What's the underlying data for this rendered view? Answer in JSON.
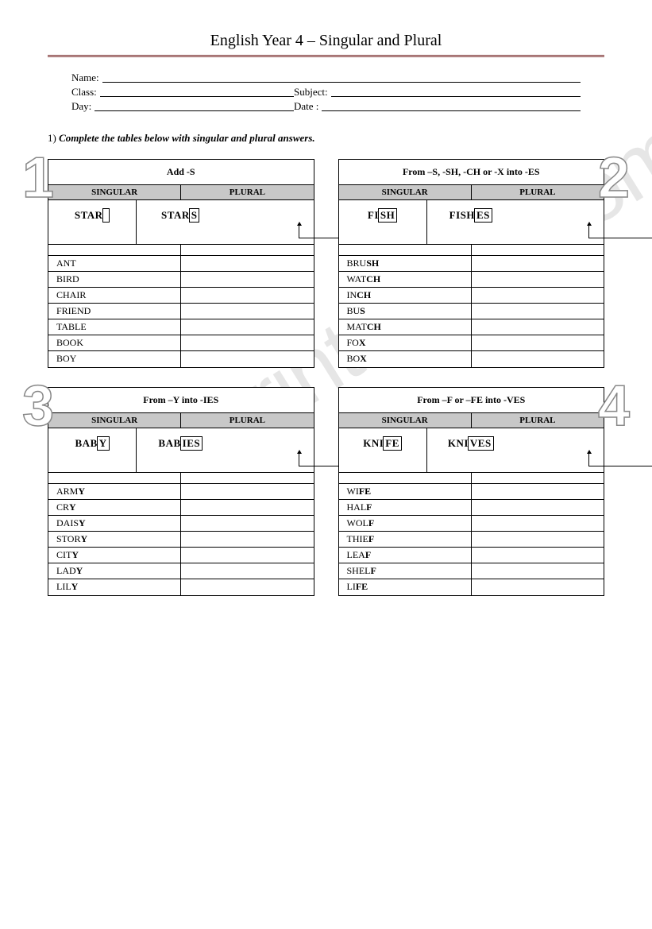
{
  "title": "English Year 4 – Singular and Plural",
  "info": {
    "name_label": "Name:",
    "class_label": "Class:",
    "subject_label": "Subject:",
    "day_label": "Day:",
    "date_label": "Date   :"
  },
  "instruction_num": "1)",
  "instruction_text": "Complete the tables below with singular and plural answers.",
  "watermark": "ESLprintables.com",
  "tables": [
    {
      "number": "1",
      "num_side": "left",
      "title": "Add -S",
      "col_singular": "SINGULAR",
      "col_plural": "PLURAL",
      "example_singular": "STAR",
      "example_plural_stem": "STAR",
      "example_plural_box": "S",
      "rows": [
        {
          "stem": "ANT",
          "tail": ""
        },
        {
          "stem": "BIRD",
          "tail": ""
        },
        {
          "stem": "CHAIR",
          "tail": ""
        },
        {
          "stem": "FRIEND",
          "tail": ""
        },
        {
          "stem": "TABLE",
          "tail": ""
        },
        {
          "stem": "BOOK",
          "tail": ""
        },
        {
          "stem": "BOY",
          "tail": ""
        }
      ]
    },
    {
      "number": "2",
      "num_side": "right",
      "title": "From –S, -SH, -CH or -X into -ES",
      "col_singular": "SINGULAR",
      "col_plural": "PLURAL",
      "example_singular_stem": "FI",
      "example_singular_box": "SH",
      "example_plural_stem": "FISH",
      "example_plural_box": "ES",
      "rows": [
        {
          "stem": "BRU",
          "tail": "SH"
        },
        {
          "stem": "WAT",
          "tail": "CH"
        },
        {
          "stem": "IN",
          "tail": "CH"
        },
        {
          "stem": "BU",
          "tail": "S"
        },
        {
          "stem": "MAT",
          "tail": "CH"
        },
        {
          "stem": "FO",
          "tail": "X"
        },
        {
          "stem": "BO",
          "tail": "X"
        }
      ]
    },
    {
      "number": "3",
      "num_side": "left",
      "title": "From –Y into -IES",
      "col_singular": "SINGULAR",
      "col_plural": "PLURAL",
      "example_singular_stem": "BAB",
      "example_singular_box": "Y",
      "example_plural_stem": "BAB",
      "example_plural_box": "IES",
      "rows": [
        {
          "stem": "ARM",
          "tail": "Y"
        },
        {
          "stem": "CR",
          "tail": "Y"
        },
        {
          "stem": "DAIS",
          "tail": "Y"
        },
        {
          "stem": "STOR",
          "tail": "Y"
        },
        {
          "stem": "CIT",
          "tail": "Y"
        },
        {
          "stem": "LAD",
          "tail": "Y"
        },
        {
          "stem": "LIL",
          "tail": "Y"
        }
      ]
    },
    {
      "number": "4",
      "num_side": "right",
      "title": "From –F or –FE into -VES",
      "col_singular": "SINGULAR",
      "col_plural": "PLURAL",
      "example_singular_stem": "KNI",
      "example_singular_box": "FE",
      "example_plural_stem": "KNI",
      "example_plural_box": "VES",
      "rows": [
        {
          "stem": "WI",
          "tail": "FE"
        },
        {
          "stem": "HAL",
          "tail": "F"
        },
        {
          "stem": "WOL",
          "tail": "F"
        },
        {
          "stem": "THIE",
          "tail": "F"
        },
        {
          "stem": "LEA",
          "tail": "F"
        },
        {
          "stem": "SHEL",
          "tail": "F"
        },
        {
          "stem": "LI",
          "tail": "FE"
        }
      ]
    }
  ],
  "colors": {
    "rule": "#7a2e2e",
    "header_bg": "#c8c8c8",
    "watermark": "rgba(200,200,200,0.45)"
  }
}
